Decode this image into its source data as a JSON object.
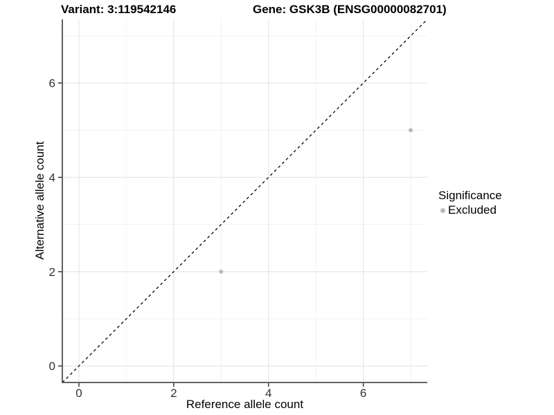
{
  "titles": {
    "variant": "Variant: 3:119542146",
    "gene": "Gene: GSK3B (ENSG00000082701)"
  },
  "legend": {
    "title": "Significance",
    "items": [
      {
        "label": "Excluded",
        "color": "#b9b9b9"
      }
    ]
  },
  "colors": {
    "background": "#ffffff",
    "axis_line": "#4d4d4d",
    "tick_mark": "#333333",
    "tick_label": "#303030",
    "grid_major": "#e7e7e7",
    "grid_minor": "#f2f2f2",
    "reference_line": "#000000",
    "point": "#b9b9b9"
  },
  "chart_data": {
    "type": "scatter",
    "title": "Variant: 3:119542146   Gene: GSK3B (ENSG00000082701)",
    "xlabel": "Reference allele count",
    "ylabel": "Alternative allele count",
    "xlim": [
      -0.35,
      7.35
    ],
    "ylim": [
      -0.35,
      7.35
    ],
    "x_major_ticks": [
      0,
      2,
      4,
      6
    ],
    "y_major_ticks": [
      0,
      2,
      4,
      6
    ],
    "x_minor_gridlines": [
      1,
      3,
      5,
      7
    ],
    "y_minor_gridlines": [
      1,
      3,
      5,
      7
    ],
    "grid": true,
    "legend_position": "right",
    "series": [
      {
        "name": "Excluded",
        "color": "#b9b9b9",
        "point_radius": 3,
        "points": [
          [
            3,
            2
          ],
          [
            7,
            5
          ]
        ]
      }
    ],
    "reference_line": {
      "kind": "identity",
      "slope": 1,
      "intercept": 0,
      "style": "dashed",
      "color": "#000000"
    }
  }
}
